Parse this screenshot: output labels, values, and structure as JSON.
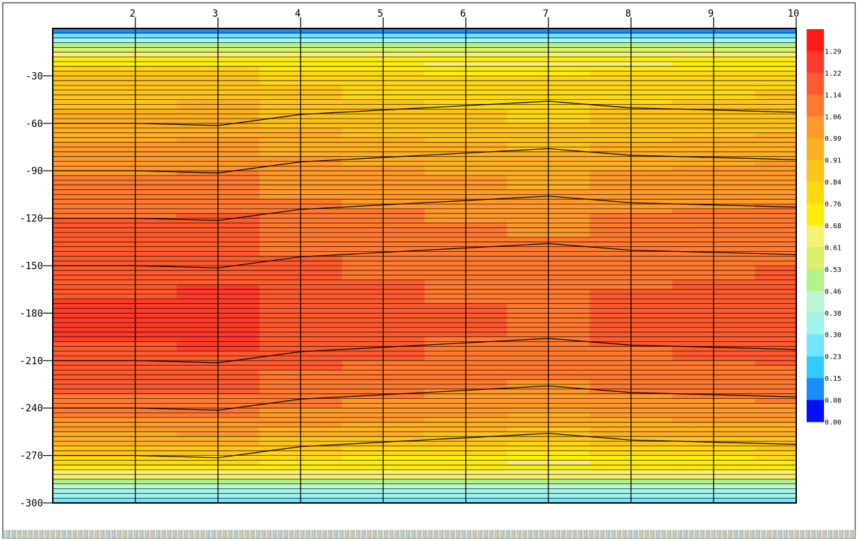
{
  "chart_data": {
    "type": "heatmap",
    "title": "",
    "xlabel": "",
    "ylabel": "",
    "x": [
      1,
      2,
      3,
      4,
      5,
      6,
      7,
      8,
      9,
      10
    ],
    "x_ticks": [
      "2",
      "3",
      "4",
      "5",
      "6",
      "7",
      "8",
      "9",
      "10"
    ],
    "xlim": [
      1,
      10
    ],
    "y_ticks": [
      "-30",
      "-60",
      "-90",
      "-120",
      "-150",
      "-180",
      "-210",
      "-240",
      "-270",
      "-300"
    ],
    "ylim": [
      -300,
      0
    ],
    "grid": true,
    "legend": "right",
    "colorbar": {
      "labels": [
        "1.29",
        "1.22",
        "1.14",
        "1.06",
        "0.99",
        "0.91",
        "0.84",
        "0.76",
        "0.68",
        "0.61",
        "0.53",
        "0.46",
        "0.38",
        "0.30",
        "0.23",
        "0.15",
        "0.08",
        "0.00"
      ],
      "colors": [
        "#ff1a1a",
        "#ff3a2a",
        "#ff5a2e",
        "#ff7a30",
        "#ff9a2a",
        "#ffb022",
        "#ffc41a",
        "#ffd812",
        "#ffee0a",
        "#f8f070",
        "#d8f06a",
        "#b4f28a",
        "#b8f6d4",
        "#9ff4ee",
        "#70e6ff",
        "#30ccff",
        "#1a8cff",
        "#0010ff"
      ]
    },
    "depth_profile": {
      "y": [
        0,
        -6,
        -15,
        -30,
        -45,
        -60,
        -75,
        -90,
        -105,
        -120,
        -135,
        -150,
        -165,
        -180,
        -195,
        -210,
        -225,
        -240,
        -255,
        -270,
        -282,
        -288,
        -292,
        -296,
        -300
      ],
      "v": [
        0.05,
        0.25,
        0.6,
        0.82,
        0.86,
        0.9,
        0.96,
        1.02,
        1.06,
        1.1,
        1.13,
        1.15,
        1.17,
        1.19,
        1.18,
        1.16,
        1.12,
        1.06,
        0.96,
        0.8,
        0.62,
        0.42,
        0.32,
        0.28,
        0.22
      ]
    },
    "column_adjust": [
      0,
      0,
      0.01,
      -0.04,
      -0.06,
      -0.08,
      -0.1,
      -0.07,
      -0.06,
      -0.05
    ]
  }
}
